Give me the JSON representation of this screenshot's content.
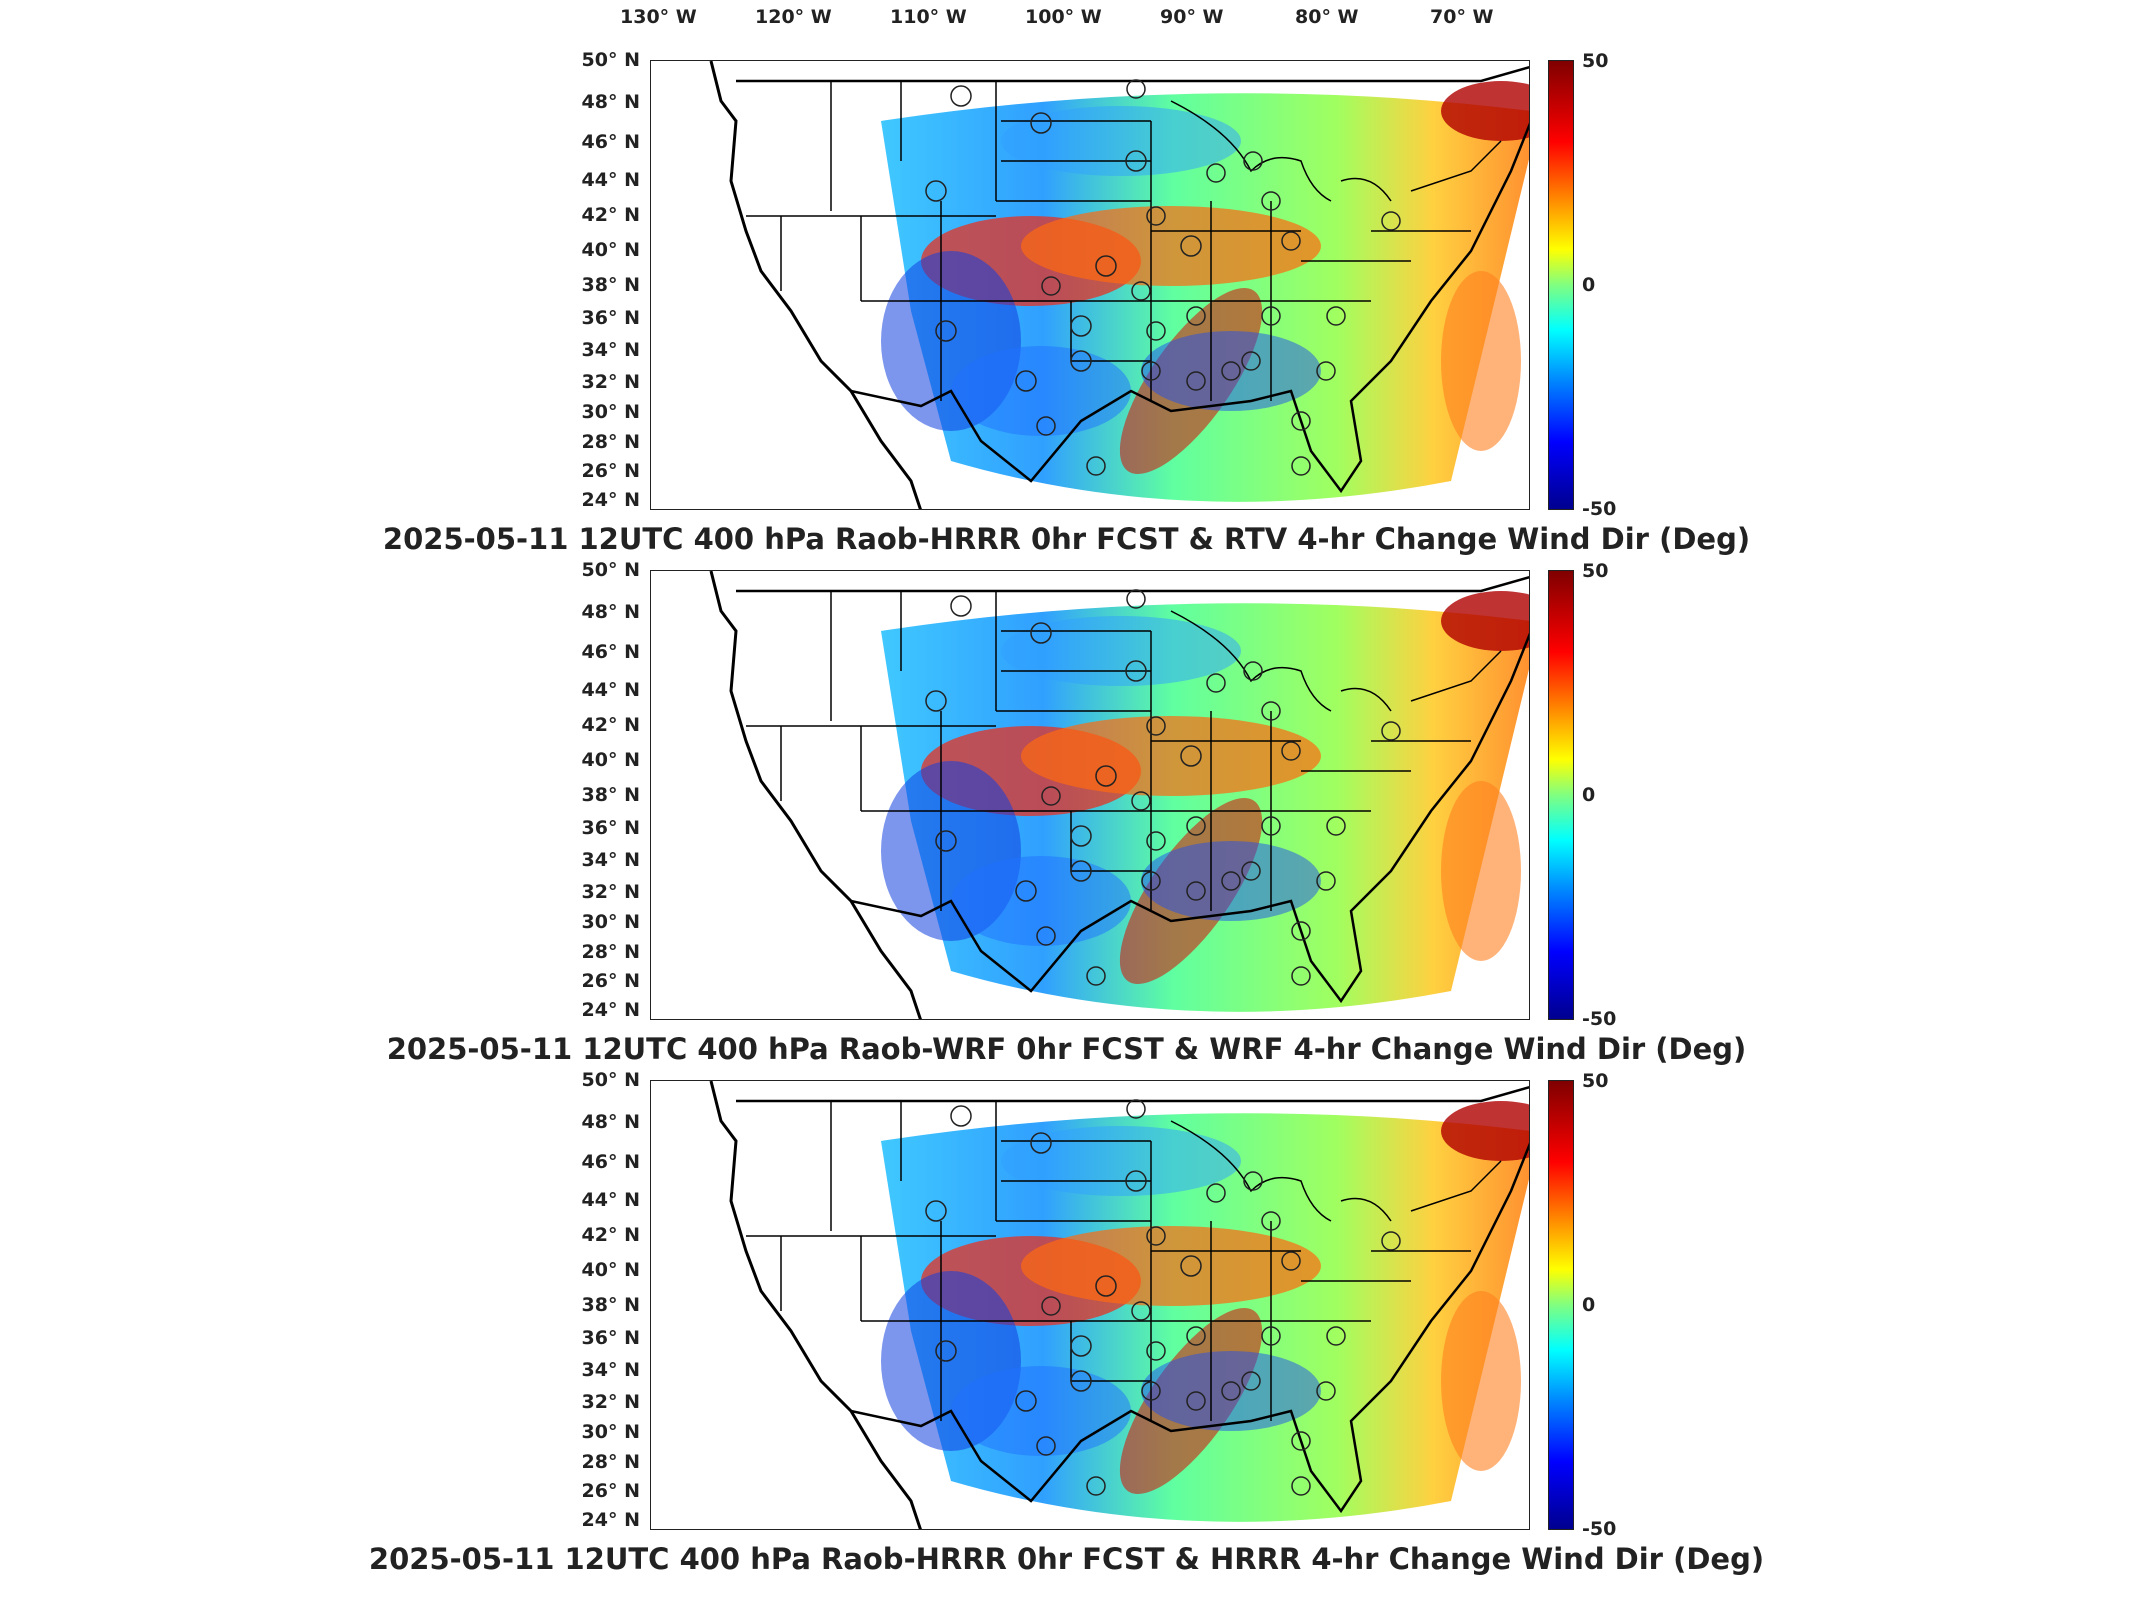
{
  "lon_labels": [
    "130° W",
    "120° W",
    "110° W",
    "100° W",
    "90° W",
    "80° W",
    "70° W"
  ],
  "lat_labels": [
    "50° N",
    "48° N",
    "46° N",
    "44° N",
    "42° N",
    "40° N",
    "38° N",
    "36° N",
    "34° N",
    "32° N",
    "30° N",
    "28° N",
    "26° N",
    "24° N"
  ],
  "colorbar": {
    "max": "50",
    "mid": "0",
    "min": "-50"
  },
  "panels": [
    {
      "title": "2025-05-11 12UTC 400 hPa Raob-HRRR 0hr FCST & RTV 4-hr Change Wind Dir (Deg)"
    },
    {
      "title": "2025-05-11 12UTC 400 hPa Raob-WRF 0hr FCST & WRF 4-hr Change Wind Dir (Deg)"
    },
    {
      "title": "2025-05-11 12UTC 400 hPa Raob-HRRR 0hr FCST & HRRR 4-hr Change Wind Dir (Deg)"
    }
  ],
  "colors": {
    "high": "#8b0000",
    "zero": "#80ff80",
    "low": "#00008b"
  }
}
